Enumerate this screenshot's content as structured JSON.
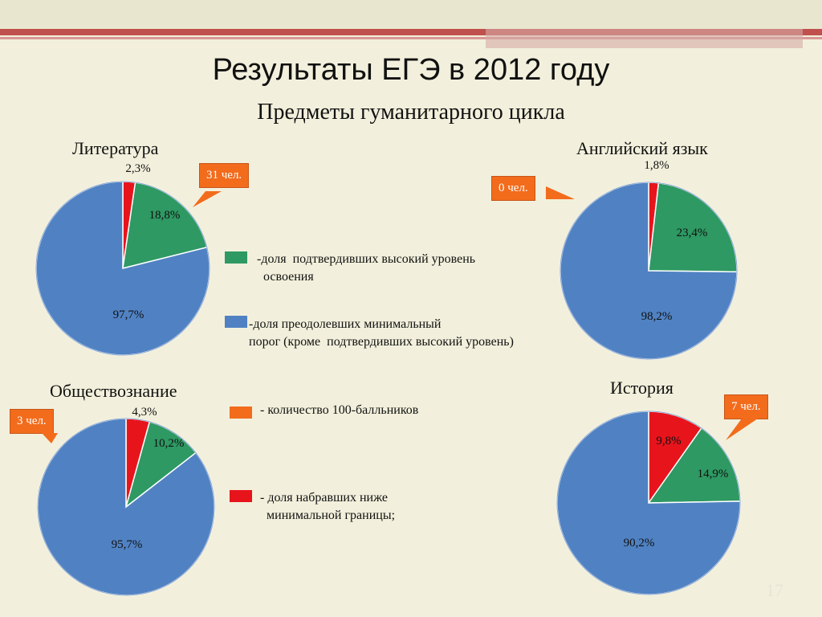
{
  "title": "Результаты ЕГЭ в 2012 году",
  "subtitle": "Предметы гуманитарного цикла",
  "colors": {
    "red": "#e8141c",
    "green": "#2e9963",
    "blue": "#5082c3",
    "orange": "#f26c1c"
  },
  "legend": {
    "green": "-доля  подтвердивших высокий уровень\n  освоения",
    "blue": "-доля преодолевших минимальный\nпорог (кроме  подтвердивших высокий уровень)",
    "orange": " - количество 100-балльников",
    "red": " - доля набравших ниже\n   минимальной границы;"
  },
  "page_number": "17",
  "chart_data": [
    {
      "type": "pie",
      "title": "Литература",
      "callout": "31 чел.",
      "slices": [
        {
          "label": "2,3%",
          "value": 2.3,
          "color": "red"
        },
        {
          "label": "18,8%",
          "value": 18.8,
          "color": "green"
        },
        {
          "label": "97,7%",
          "value": 78.9,
          "color": "blue"
        }
      ]
    },
    {
      "type": "pie",
      "title": "Английский язык",
      "callout": "0 чел.",
      "slices": [
        {
          "label": "1,8%",
          "value": 1.8,
          "color": "red"
        },
        {
          "label": "23,4%",
          "value": 23.4,
          "color": "green"
        },
        {
          "label": "98,2%",
          "value": 74.8,
          "color": "blue"
        }
      ]
    },
    {
      "type": "pie",
      "title": "Обществознание",
      "callout": "3 чел.",
      "slices": [
        {
          "label": "4,3%",
          "value": 4.3,
          "color": "red"
        },
        {
          "label": "10,2%",
          "value": 10.2,
          "color": "green"
        },
        {
          "label": "95,7%",
          "value": 85.5,
          "color": "blue"
        }
      ]
    },
    {
      "type": "pie",
      "title": "История",
      "callout": "7 чел.",
      "slices": [
        {
          "label": "9,8%",
          "value": 9.8,
          "color": "red"
        },
        {
          "label": "14,9%",
          "value": 14.9,
          "color": "green"
        },
        {
          "label": "90,2%",
          "value": 75.3,
          "color": "blue"
        }
      ]
    }
  ]
}
